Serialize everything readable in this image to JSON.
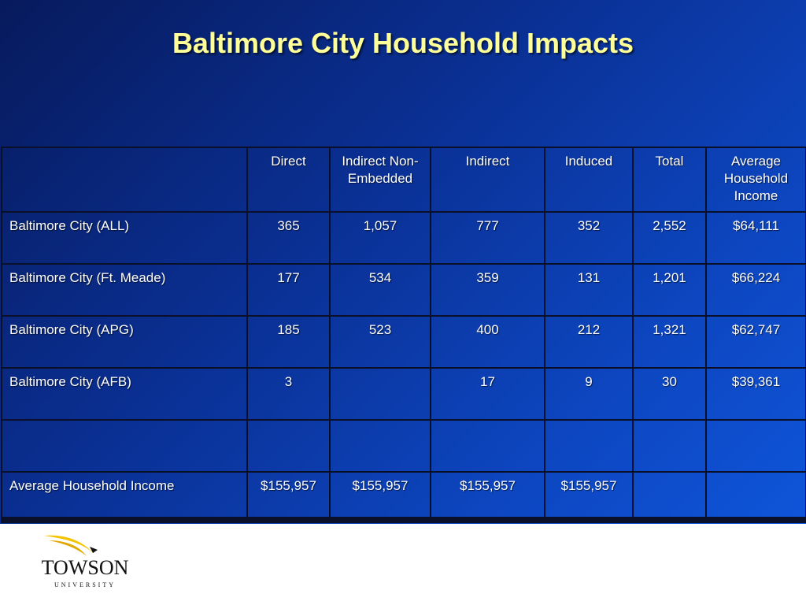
{
  "title": "Baltimore City Household Impacts",
  "table": {
    "headers": [
      "",
      "Direct",
      "Indirect Non-Embedded",
      "Indirect",
      "Induced",
      "Total",
      "Average Household Income"
    ],
    "rows": [
      {
        "label": "Baltimore City (ALL)",
        "cells": [
          "365",
          "1,057",
          "777",
          "352",
          "2,552",
          "$64,111"
        ]
      },
      {
        "label": "Baltimore City (Ft. Meade)",
        "cells": [
          "177",
          "534",
          "359",
          "131",
          "1,201",
          "$66,224"
        ]
      },
      {
        "label": "Baltimore City (APG)",
        "cells": [
          "185",
          "523",
          "400",
          "212",
          "1,321",
          "$62,747"
        ]
      },
      {
        "label": "Baltimore City (AFB)",
        "cells": [
          "3",
          "",
          "17",
          "9",
          "30",
          "$39,361"
        ]
      },
      {
        "label": "",
        "cells": [
          "",
          "",
          "",
          "",
          "",
          ""
        ]
      },
      {
        "label": "Average Household Income",
        "cells": [
          "$155,957",
          "$155,957",
          "$155,957",
          "$155,957",
          "",
          ""
        ]
      }
    ]
  },
  "logo": {
    "name": "TOWSON",
    "sub": "UNIVERSITY"
  },
  "colors": {
    "title": "#ffff99",
    "background": "#0a2f92",
    "logo_swoosh": "#f5c400"
  }
}
